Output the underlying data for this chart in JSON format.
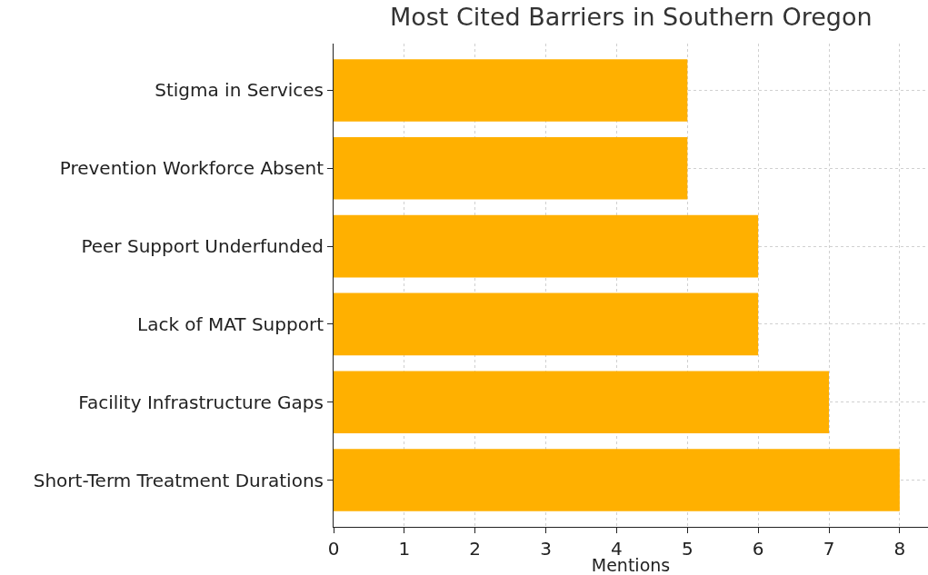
{
  "chart_data": {
    "type": "bar",
    "orientation": "horizontal",
    "title": "Most Cited Barriers in Southern Oregon",
    "xlabel": "Mentions",
    "categories": [
      "Stigma in Services",
      "Prevention Workforce Absent",
      "Peer Support Underfunded",
      "Lack of MAT Support",
      "Facility Infrastructure Gaps",
      "Short-Term Treatment Durations"
    ],
    "values": [
      5,
      5,
      6,
      6,
      7,
      8
    ],
    "color": "#ffb000",
    "xlim": [
      0,
      8.4
    ],
    "xticks": [
      0,
      1,
      2,
      3,
      4,
      5,
      6,
      7,
      8
    ],
    "grid": true
  }
}
